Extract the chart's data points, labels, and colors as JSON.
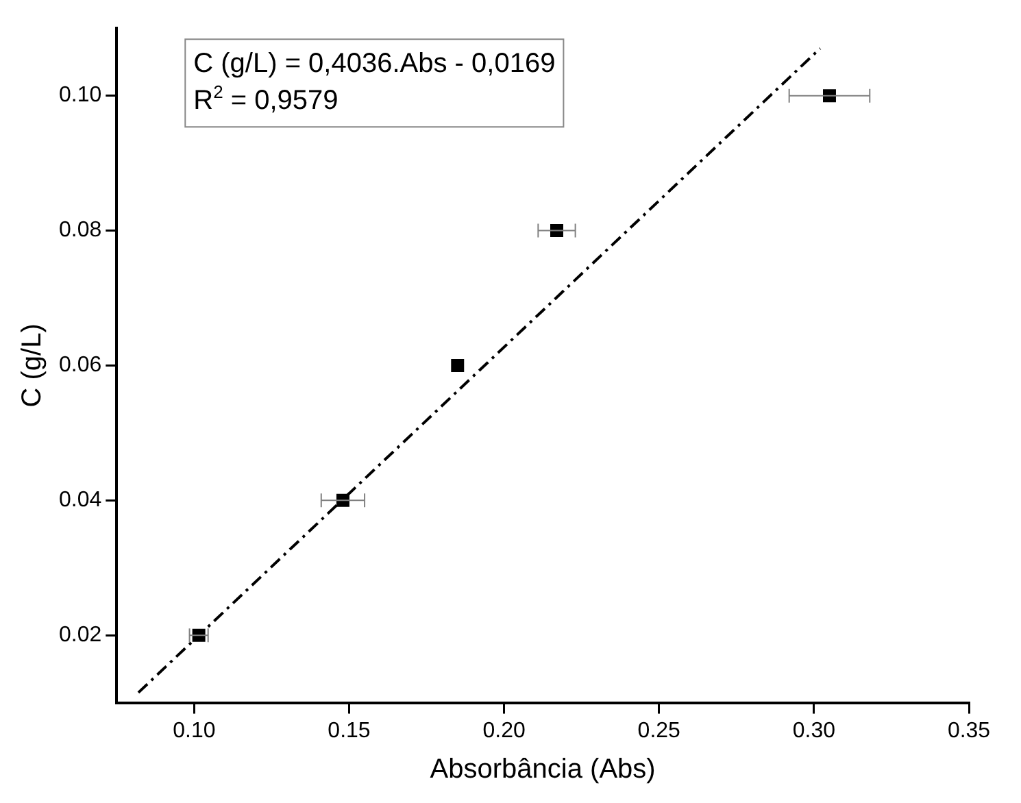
{
  "chart_data": {
    "type": "scatter",
    "xlabel": "Absorbância (Abs)",
    "ylabel": "C (g/L)",
    "annotations": [
      "C (g/L) = 0,4036.Abs - 0,0169",
      "R$^{2}$ = 0,9579"
    ],
    "series": [
      {
        "type": "scatter",
        "color": "#000000",
        "marker": "square",
        "x": [
          0.1015,
          0.148,
          0.185,
          0.217,
          0.305
        ],
        "values": [
          0.02,
          0.04,
          0.06,
          0.08,
          0.1
        ],
        "xerrors": [
          0.003,
          0.007,
          null,
          0.006,
          0.013
        ]
      },
      {
        "type": "line",
        "color": "#000000",
        "marker": "none",
        "line_style": "dashed",
        "x": [
          0.082,
          0.302
        ],
        "values": [
          0.0115,
          0.107
        ]
      }
    ],
    "xlim": [
      0.075,
      0.35
    ],
    "xticks": [
      {
        "value": 0.1,
        "label": "0.10"
      },
      0.15,
      {
        "value": 0.2,
        "label": "0.20"
      },
      0.25,
      {
        "value": 0.3,
        "label": "0.30"
      },
      0.35
    ],
    "ylim": [
      0.01,
      0.11
    ],
    "yticks": [
      0.02,
      0.04,
      0.06,
      0.08,
      {
        "value": 0.1,
        "label": "0.10"
      }
    ],
    "grid": false,
    "legend": false
  }
}
